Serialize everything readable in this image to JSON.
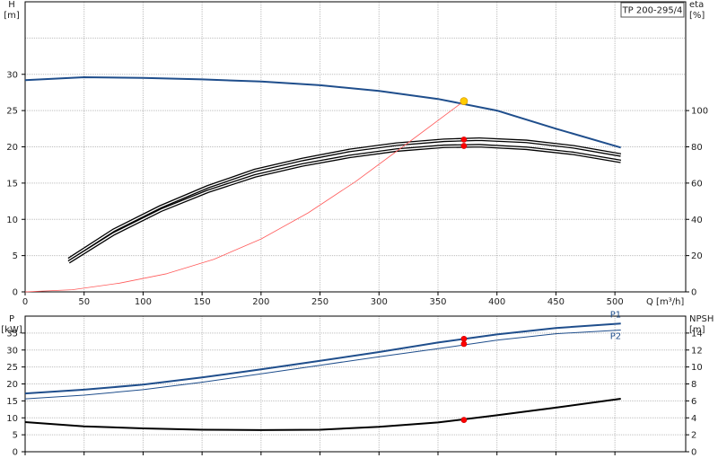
{
  "chart_data": [
    {
      "type": "line",
      "title": "TP 200-295/4",
      "x": {
        "label": "Q [m³/h]",
        "ticks": [
          0,
          50,
          100,
          150,
          200,
          250,
          300,
          350,
          400,
          450,
          500
        ],
        "range": [
          0,
          560
        ]
      },
      "y_left": {
        "label_top": "H",
        "label_unit": "[m]",
        "ticks": [
          0,
          5,
          10,
          15,
          20,
          25,
          30
        ],
        "range": [
          0,
          40
        ]
      },
      "y_right": {
        "label_top": "eta",
        "label_unit": "[%]",
        "ticks": [
          0,
          20,
          40,
          60,
          80,
          100
        ],
        "range": [
          0,
          160
        ]
      },
      "grid": true,
      "series": [
        {
          "axis": "left",
          "color": "#1f4e8c",
          "width": 2,
          "x": [
            0,
            50,
            100,
            150,
            200,
            250,
            300,
            350,
            400,
            450,
            505
          ],
          "y": [
            29.2,
            29.6,
            29.5,
            29.3,
            29.0,
            28.5,
            27.7,
            26.6,
            25.0,
            22.5,
            19.9
          ]
        },
        {
          "axis": "right",
          "color": "#000000",
          "width": 1.8,
          "x": [
            37,
            75,
            115,
            155,
            195,
            235,
            275,
            315,
            355,
            385,
            425,
            465,
            505
          ],
          "y": [
            18,
            34,
            47,
            58,
            67,
            73,
            78,
            81.5,
            83.6,
            84.2,
            83,
            80,
            75.5
          ]
        },
        {
          "axis": "right",
          "color": "#000000",
          "width": 1.8,
          "x": [
            37,
            75,
            115,
            155,
            195,
            235,
            275,
            315,
            355,
            385,
            425,
            465,
            505
          ],
          "y": [
            16.5,
            32,
            45,
            55.5,
            64,
            70,
            74.7,
            78.2,
            80.3,
            80.6,
            79.2,
            76.4,
            72
          ]
        },
        {
          "axis": "left",
          "color": "#ff5a5a",
          "width": 0.8,
          "x": [
            0,
            40,
            80,
            120,
            160,
            200,
            240,
            280,
            320,
            372
          ],
          "y": [
            0,
            0.3,
            1.2,
            2.5,
            4.5,
            7.3,
            10.9,
            15.2,
            20.0,
            26.3
          ]
        }
      ],
      "markers": [
        {
          "x": 372,
          "y": 26.3,
          "axis": "left",
          "color": "#ffcc00"
        },
        {
          "x": 372,
          "y": 84,
          "axis": "right",
          "color": "#ff0000"
        },
        {
          "x": 372,
          "y": 80.5,
          "axis": "right",
          "color": "#ff0000"
        }
      ],
      "legend_box": "TP 200-295/4"
    },
    {
      "type": "line",
      "x": {
        "ticks": [
          0,
          50,
          100,
          150,
          200,
          250,
          300,
          350,
          400,
          450,
          500
        ],
        "range": [
          0,
          560
        ]
      },
      "y_left": {
        "label_top": "P",
        "label_unit": "[kW]",
        "ticks": [
          0,
          5,
          10,
          15,
          20,
          25,
          30,
          35
        ],
        "range": [
          0,
          40
        ]
      },
      "y_right": {
        "label_top": "NPSH",
        "label_unit": "[m]",
        "ticks": [
          0,
          2,
          4,
          6,
          8,
          10,
          12,
          14
        ],
        "range": [
          0,
          16
        ]
      },
      "grid": true,
      "series": [
        {
          "name": "P1",
          "axis": "left",
          "color": "#1f4e8c",
          "width": 2,
          "x": [
            0,
            50,
            100,
            150,
            200,
            250,
            300,
            350,
            400,
            450,
            505
          ],
          "y": [
            17.2,
            18.3,
            19.8,
            21.9,
            24.3,
            26.8,
            29.4,
            32.2,
            34.6,
            36.5,
            37.8
          ]
        },
        {
          "name": "P2",
          "axis": "left",
          "color": "#1f4e8c",
          "width": 1,
          "x": [
            0,
            50,
            100,
            150,
            200,
            250,
            300,
            350,
            400,
            450,
            505
          ],
          "y": [
            15.6,
            16.7,
            18.3,
            20.5,
            23.0,
            25.5,
            28.0,
            30.4,
            32.9,
            34.8,
            35.9
          ]
        },
        {
          "axis": "right",
          "color": "#000000",
          "width": 2,
          "x": [
            0,
            50,
            100,
            150,
            200,
            250,
            300,
            350,
            400,
            450,
            505
          ],
          "y": [
            3.5,
            3.0,
            2.75,
            2.6,
            2.55,
            2.6,
            2.95,
            3.45,
            4.3,
            5.2,
            6.25
          ]
        }
      ],
      "markers": [
        {
          "x": 372,
          "y": 33.3,
          "axis": "left",
          "color": "#ff0000"
        },
        {
          "x": 372,
          "y": 31.8,
          "axis": "left",
          "color": "#ff0000"
        },
        {
          "x": 372,
          "y": 3.75,
          "axis": "right",
          "color": "#ff0000"
        }
      ],
      "series_labels": [
        "P1",
        "P2"
      ]
    }
  ]
}
